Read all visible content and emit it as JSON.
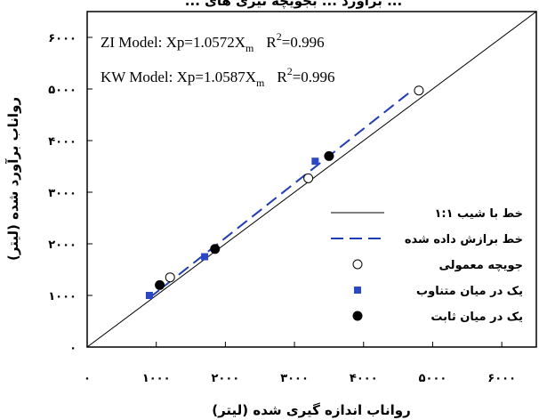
{
  "chart_data": {
    "type": "scatter",
    "title": "... برآورد ... بجویچه تیری های ...",
    "xlabel": "رواناب اندازه گیری شده (لیتر)",
    "ylabel": "رواناب برآورد شده (لیتر)",
    "xlim": [
      0,
      6500
    ],
    "ylim": [
      0,
      6500
    ],
    "x_ticks": [
      0,
      1000,
      2000,
      3000,
      4000,
      5000,
      6000
    ],
    "x_tick_labels": [
      "۰",
      "۱۰۰۰",
      "۲۰۰۰",
      "۳۰۰۰",
      "۴۰۰۰",
      "۵۰۰۰",
      "۶۰۰۰"
    ],
    "y_ticks": [
      0,
      1000,
      2000,
      3000,
      4000,
      5000,
      6000
    ],
    "y_tick_labels": [
      "۰",
      "۱۰۰۰",
      "۲۰۰۰",
      "۳۰۰۰",
      "۴۰۰۰",
      "۵۰۰۰",
      "۶۰۰۰"
    ],
    "grid": false,
    "legend_position": "bottom-right",
    "annotations": [
      {
        "lead": "ZI Model: Xp=1.0572X",
        "sub": "m",
        "r2": "0.996"
      },
      {
        "lead": "KW Model: Xp=1.0587X",
        "sub": "m",
        "r2": "0.996"
      }
    ],
    "series": [
      {
        "name": "خط با شیب ۱:۱",
        "kind": "line",
        "style": "solid",
        "color": "#000000",
        "x": [
          0,
          6500
        ],
        "y": [
          0,
          6500
        ]
      },
      {
        "name": "خط برازش داده شده",
        "kind": "line",
        "style": "dashed",
        "color": "#1f3cb4",
        "x": [
          900,
          4700
        ],
        "y": [
          952,
          4970
        ]
      },
      {
        "name": "جویچه معمولی",
        "kind": "points",
        "marker": "open-circle",
        "color": "#000000",
        "x": [
          1200,
          3200,
          4800
        ],
        "y": [
          1350,
          3270,
          4970
        ]
      },
      {
        "name": "یک در میان متناوب",
        "kind": "points",
        "marker": "square",
        "color": "#2b47c2",
        "x": [
          900,
          1700,
          3300
        ],
        "y": [
          1000,
          1750,
          3600
        ]
      },
      {
        "name": "یک در میان ثابت",
        "kind": "points",
        "marker": "filled-circle",
        "color": "#000000",
        "x": [
          1050,
          1850,
          3500
        ],
        "y": [
          1200,
          1900,
          3700
        ]
      }
    ]
  }
}
